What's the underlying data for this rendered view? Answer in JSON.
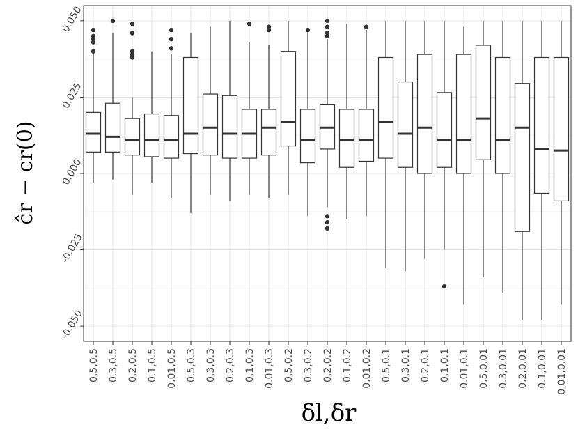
{
  "chart_data": {
    "type": "boxplot",
    "xlabel": "δl,δr",
    "ylabel": "ĉr − cr(0)",
    "ylim": [
      -0.055,
      0.055
    ],
    "yticks": [
      -0.05,
      -0.025,
      0.0,
      0.025,
      0.05
    ],
    "ytick_labels": [
      "-0.050",
      "-0.025",
      "0.000",
      "0.025",
      "0.050"
    ],
    "grid": true,
    "categories": [
      "0.5,0.5",
      "0.3,0.5",
      "0.2,0.5",
      "0.1,0.5",
      "0.01,0.5",
      "0.5,0.3",
      "0.3,0.3",
      "0.2,0.3",
      "0.1,0.3",
      "0.01,0.3",
      "0.5,0.2",
      "0.3,0.2",
      "0.2,0.2",
      "0.1,0.2",
      "0.01,0.2",
      "0.5,0.1",
      "0.3,0.1",
      "0.2,0.1",
      "0.1,0.1",
      "0.01,0.1",
      "0.5,0.01",
      "0.3,0.01",
      "0.2,0.01",
      "0.1,0.01",
      "0.01,0.01"
    ],
    "boxes": [
      {
        "low": -0.003,
        "q1": 0.007,
        "median": 0.013,
        "q3": 0.02,
        "high": 0.039,
        "outliers": [
          0.04,
          0.043,
          0.044,
          0.045,
          0.047
        ]
      },
      {
        "low": -0.002,
        "q1": 0.007,
        "median": 0.012,
        "q3": 0.023,
        "high": 0.046,
        "outliers": [
          0.05
        ]
      },
      {
        "low": -0.007,
        "q1": 0.006,
        "median": 0.011,
        "q3": 0.018,
        "high": 0.025,
        "outliers": [
          0.038,
          0.039,
          0.04,
          0.046,
          0.049
        ]
      },
      {
        "low": -0.003,
        "q1": 0.0055,
        "median": 0.011,
        "q3": 0.0195,
        "high": 0.04,
        "outliers": []
      },
      {
        "low": -0.008,
        "q1": 0.005,
        "median": 0.011,
        "q3": 0.019,
        "high": 0.039,
        "outliers": [
          0.041,
          0.044,
          0.047
        ]
      },
      {
        "low": -0.013,
        "q1": 0.0065,
        "median": 0.013,
        "q3": 0.038,
        "high": 0.046,
        "outliers": []
      },
      {
        "low": -0.007,
        "q1": 0.006,
        "median": 0.015,
        "q3": 0.026,
        "high": 0.048,
        "outliers": []
      },
      {
        "low": -0.009,
        "q1": 0.005,
        "median": 0.013,
        "q3": 0.0255,
        "high": 0.05,
        "outliers": []
      },
      {
        "low": -0.007,
        "q1": 0.005,
        "median": 0.013,
        "q3": 0.021,
        "high": 0.043,
        "outliers": [
          0.049
        ]
      },
      {
        "low": -0.008,
        "q1": 0.006,
        "median": 0.015,
        "q3": 0.021,
        "high": 0.042,
        "outliers": [
          0.047,
          0.048
        ]
      },
      {
        "low": -0.007,
        "q1": 0.009,
        "median": 0.017,
        "q3": 0.04,
        "high": 0.05,
        "outliers": []
      },
      {
        "low": -0.014,
        "q1": 0.0035,
        "median": 0.011,
        "q3": 0.021,
        "high": 0.047,
        "outliers": [
          0.047
        ]
      },
      {
        "low": -0.011,
        "q1": 0.008,
        "median": 0.015,
        "q3": 0.0225,
        "high": 0.044,
        "outliers": [
          -0.014,
          -0.016,
          -0.018,
          0.045,
          0.046,
          0.048,
          0.05
        ]
      },
      {
        "low": -0.015,
        "q1": 0.002,
        "median": 0.011,
        "q3": 0.021,
        "high": 0.049,
        "outliers": []
      },
      {
        "low": -0.014,
        "q1": 0.004,
        "median": 0.011,
        "q3": 0.021,
        "high": 0.047,
        "outliers": [
          0.048
        ]
      },
      {
        "low": -0.031,
        "q1": 0.005,
        "median": 0.017,
        "q3": 0.038,
        "high": 0.05,
        "outliers": []
      },
      {
        "low": -0.032,
        "q1": 0.002,
        "median": 0.013,
        "q3": 0.03,
        "high": 0.05,
        "outliers": []
      },
      {
        "low": -0.028,
        "q1": 0.0,
        "median": 0.015,
        "q3": 0.039,
        "high": 0.05,
        "outliers": []
      },
      {
        "low": -0.025,
        "q1": 0.002,
        "median": 0.011,
        "q3": 0.0265,
        "high": 0.05,
        "outliers": [
          -0.037
        ]
      },
      {
        "low": -0.043,
        "q1": 0.0,
        "median": 0.011,
        "q3": 0.039,
        "high": 0.048,
        "outliers": []
      },
      {
        "low": -0.034,
        "q1": 0.0045,
        "median": 0.018,
        "q3": 0.042,
        "high": 0.05,
        "outliers": []
      },
      {
        "low": -0.039,
        "q1": 0.0,
        "median": 0.011,
        "q3": 0.038,
        "high": 0.05,
        "outliers": []
      },
      {
        "low": -0.048,
        "q1": -0.019,
        "median": 0.015,
        "q3": 0.0295,
        "high": 0.05,
        "outliers": []
      },
      {
        "low": -0.048,
        "q1": -0.0065,
        "median": 0.008,
        "q3": 0.038,
        "high": 0.05,
        "outliers": []
      },
      {
        "low": -0.043,
        "q1": -0.009,
        "median": 0.0075,
        "q3": 0.038,
        "high": 0.05,
        "outliers": []
      }
    ]
  }
}
